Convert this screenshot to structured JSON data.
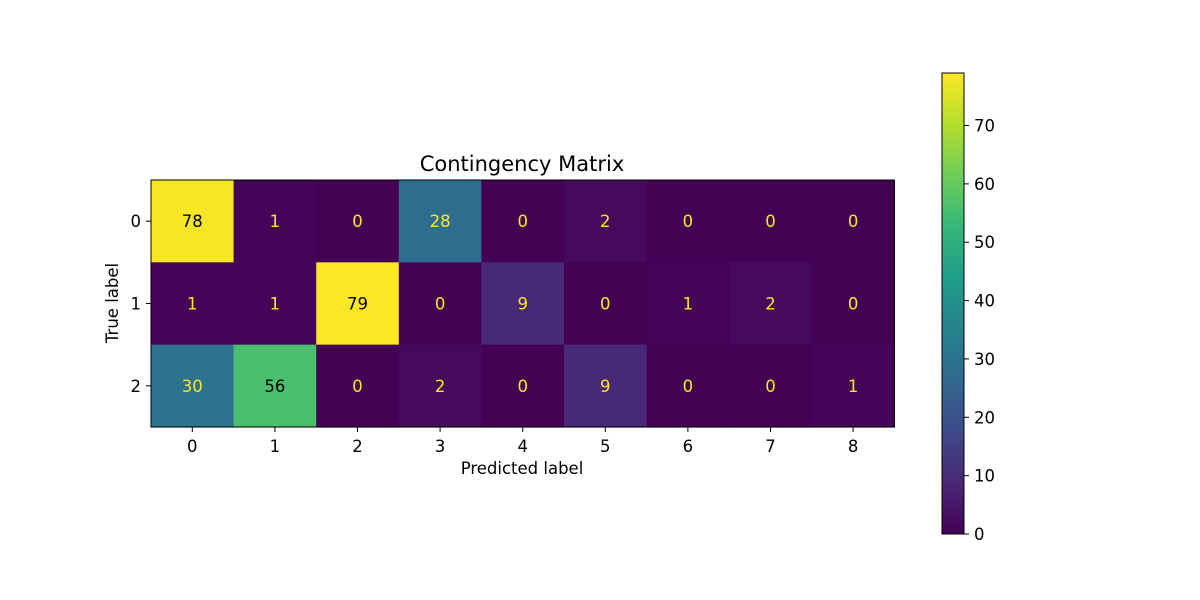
{
  "chart_data": {
    "type": "heatmap",
    "title": "Contingency Matrix",
    "xlabel": "Predicted label",
    "ylabel": "True label",
    "x_categories": [
      "0",
      "1",
      "2",
      "3",
      "4",
      "5",
      "6",
      "7",
      "8"
    ],
    "y_categories": [
      "0",
      "1",
      "2"
    ],
    "values": [
      [
        78,
        1,
        0,
        28,
        0,
        2,
        0,
        0,
        0
      ],
      [
        1,
        1,
        79,
        0,
        9,
        0,
        1,
        2,
        0
      ],
      [
        30,
        56,
        0,
        2,
        0,
        9,
        0,
        0,
        1
      ]
    ],
    "colormap": "viridis",
    "vmin": 0,
    "vmax": 79,
    "colorbar_ticks": [
      0,
      10,
      20,
      30,
      40,
      50,
      60,
      70
    ],
    "colors": {
      "text_on_dark": "#fde725",
      "text_on_light": "#000000"
    }
  }
}
